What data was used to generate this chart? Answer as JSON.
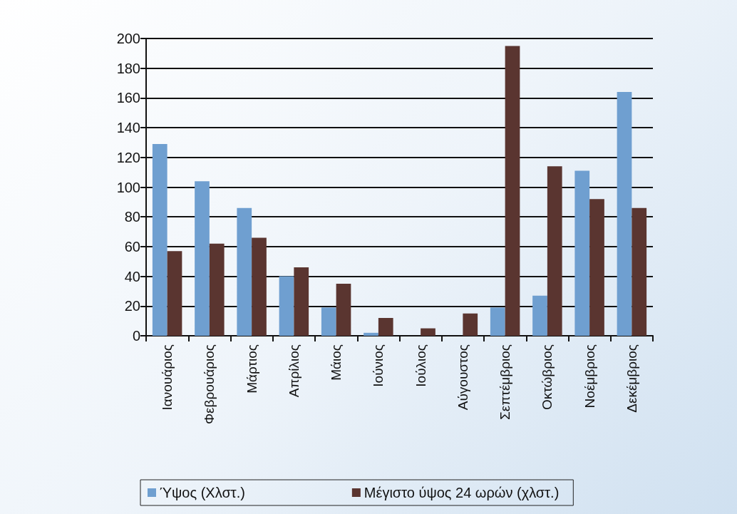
{
  "chart_data": {
    "type": "bar",
    "categories": [
      "Ιανουάριος",
      "Φεβρουάριος",
      "Μάρτιος",
      "Απρίλιος",
      "Μάιος",
      "Ιούνιος",
      "Ιούλιος",
      "Αύγουστος",
      "Σεπτέμβριος",
      "Οκτώβριος",
      "Νοέμβριος",
      "Δεκέμβριος"
    ],
    "series": [
      {
        "name": "Ύψος (Χλστ.)",
        "color": "#6f9fd0",
        "values": [
          129,
          104,
          86,
          40,
          19,
          2,
          0,
          0,
          19,
          27,
          111,
          164
        ]
      },
      {
        "name": "Μέγιστο ύψος 24 ωρών (χλστ.)",
        "color": "#5a3530",
        "values": [
          57,
          62,
          66,
          46,
          35,
          12,
          5,
          15,
          195,
          114,
          92,
          86
        ]
      }
    ],
    "ylim": [
      0,
      200
    ],
    "yticks": [
      0,
      20,
      40,
      60,
      80,
      100,
      120,
      140,
      160,
      180,
      200
    ],
    "grid": "y",
    "legend": "bottom"
  }
}
